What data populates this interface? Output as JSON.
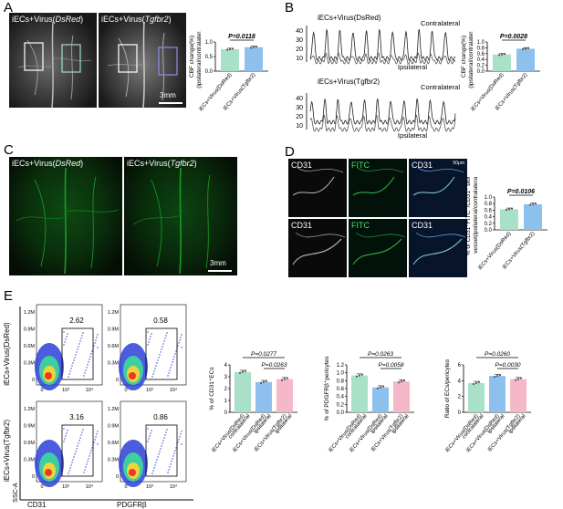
{
  "panels": {
    "A": {
      "letter": "A",
      "image_left_label": "iECs+Virus(",
      "image_left_gene": "DsRed",
      "image_right_label": "iECs+Virus(",
      "image_right_gene": "Tgfbr2",
      "scale_bar": "3mm"
    },
    "B": {
      "letter": "B",
      "top_label": "iECs+Virus(",
      "top_gene": "DsRed",
      "bottom_label": "iECs+Virus(",
      "bottom_gene": "Tgfbr2",
      "contralateral": "Contralateral",
      "ipsilateral": "Ipsilateral"
    },
    "C": {
      "letter": "C",
      "image_left_label": "iECs+Virus(",
      "image_left_gene": "DsRed",
      "image_right_label": "iECs+Virus(",
      "image_right_gene": "Tgfbr2",
      "scale_bar": "3mm"
    },
    "D": {
      "letter": "D",
      "cd31": "CD31",
      "fitc": "FITC",
      "scale": "50μm"
    },
    "E": {
      "letter": "E",
      "row1_label": "iECs+Virus(DsRed)",
      "row2_label": "iECs+Virus(Tgfbr2)",
      "ssc": "SSC-A",
      "cd31_axis": "CD31",
      "pdgfrb_axis": "PDGFRβ",
      "gate_values": [
        "2.62",
        "0.58",
        "3.16",
        "0.86"
      ],
      "yticks": [
        "1.2M",
        "0.9M",
        "0.6M",
        "0.3M",
        "0"
      ],
      "xticks": [
        "0",
        "10³",
        "10⁴"
      ]
    }
  },
  "chart_data": [
    {
      "id": "A-bar",
      "type": "bar",
      "ylabel": "CBF change(%) (ipsilateral/contralateral)",
      "categories": [
        "iECs+Virus(DsRed)",
        "iECs+Virus(Tgfbr2)"
      ],
      "values": [
        0.75,
        0.82
      ],
      "ylim": [
        0,
        1.0
      ],
      "yticks": [
        "0.0",
        "0.5",
        "1.0"
      ],
      "colors": [
        "#a8e0c8",
        "#8ec0ee"
      ],
      "pvalue": "P=0.0118"
    },
    {
      "id": "B-bar",
      "type": "bar",
      "ylabel": "CBF change(%) (ipsilateral/contralateral)",
      "categories": [
        "iECs+Virus(DsRed)",
        "iECs+Virus(Tgfbr2)"
      ],
      "values": [
        0.57,
        0.77
      ],
      "ylim": [
        0,
        1.0
      ],
      "yticks": [
        "0.0",
        "0.2",
        "0.4",
        "0.6",
        "0.8",
        "1.0"
      ],
      "colors": [
        "#a8e0c8",
        "#8ec0ee"
      ],
      "pvalue": "P=0.0028"
    },
    {
      "id": "D-bar",
      "type": "bar",
      "ylabel": "% of CD31⁺FITC⁻/CD31⁺ blood vessel(ipsilateral/contralateral)",
      "categories": [
        "iECs+Virus(DsRed)",
        "iECs+Virus(Tgfbr2)"
      ],
      "values": [
        0.63,
        0.78
      ],
      "ylim": [
        0,
        1.0
      ],
      "yticks": [
        "0.0",
        "0.2",
        "0.4",
        "0.6",
        "0.8",
        "1.0"
      ],
      "colors": [
        "#a8e0c8",
        "#8ec0ee"
      ],
      "pvalue": "P=0.0106"
    },
    {
      "id": "E-bar1",
      "type": "bar",
      "ylabel": "% of CD31⁺ECs",
      "categories": [
        "iECs+Virus(DsRed) contralateral",
        "iECs+Virus(DsRed) ipsilateral",
        "iECs+Virus(Tgfbr2) ipsilateral"
      ],
      "values": [
        3.4,
        2.55,
        2.8
      ],
      "ylim": [
        0,
        4
      ],
      "yticks": [
        "0",
        "1",
        "2",
        "3",
        "4"
      ],
      "colors": [
        "#a8e0c8",
        "#8ec0ee",
        "#f5b8c8"
      ],
      "pvalues": [
        "P=0.0277",
        "P=0.0263"
      ]
    },
    {
      "id": "E-bar2",
      "type": "bar",
      "ylabel": "% of PDGFRβ⁺pericytes",
      "categories": [
        "iECs+Virus(DsRed) contralateral",
        "iECs+Virus(DsRed) ipsilateral",
        "iECs+Virus(Tgfbr2) ipsilateral"
      ],
      "values": [
        0.93,
        0.63,
        0.78
      ],
      "ylim": [
        0,
        1.2
      ],
      "yticks": [
        "0.0",
        "0.2",
        "0.4",
        "0.6",
        "0.8",
        "1.0",
        "1.2"
      ],
      "colors": [
        "#a8e0c8",
        "#8ec0ee",
        "#f5b8c8"
      ],
      "pvalues": [
        "P=0.0263",
        "P=0.0058"
      ]
    },
    {
      "id": "E-bar3",
      "type": "bar",
      "ylabel": "Ratio of ECs/pericytes",
      "categories": [
        "iECs+Virus(DsRed) contralateral",
        "iECs+Virus(DsRed) ipsilateral",
        "iECs+Virus(Tgfbr2) ipsilateral"
      ],
      "values": [
        3.7,
        4.6,
        4.2
      ],
      "ylim": [
        0,
        6
      ],
      "yticks": [
        "0",
        "2",
        "4",
        "6"
      ],
      "colors": [
        "#a8e0c8",
        "#8ec0ee",
        "#f5b8c8"
      ],
      "pvalues": [
        "P=0.0260",
        "P=0.0030"
      ]
    }
  ]
}
